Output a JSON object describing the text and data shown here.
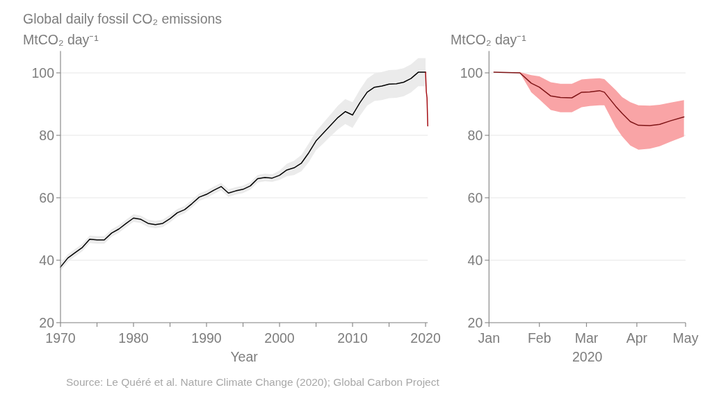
{
  "chart_data": [
    {
      "type": "line",
      "title": "Global daily fossil CO₂ emissions",
      "ylabel": "MtCO₂ day⁻¹",
      "xlabel": "Year",
      "annotations": [
        "Source: Le Quéré et al. Nature Climate Change (2020); Global Carbon Project"
      ],
      "xlim": [
        1970,
        2020.3
      ],
      "ylim": [
        20,
        107
      ],
      "xticks": [
        1970,
        {
          "value": 1975,
          "label": null
        },
        1980,
        {
          "value": 1985,
          "label": null
        },
        1990,
        {
          "value": 1995,
          "label": null
        },
        2000,
        {
          "value": 2005,
          "label": null
        },
        2010,
        {
          "value": 2015,
          "label": null
        },
        2020
      ],
      "yticks": [
        20,
        40,
        60,
        80,
        100
      ],
      "grid": "y",
      "series": [
        {
          "color": "#000000",
          "x": [
            1970,
            1971,
            1972,
            1973,
            1974,
            1975,
            1976,
            1977,
            1978,
            1979,
            1980,
            1981,
            1982,
            1983,
            1984,
            1985,
            1986,
            1987,
            1988,
            1989,
            1990,
            1991,
            1992,
            1993,
            1994,
            1995,
            1996,
            1997,
            1998,
            1999,
            2000,
            2001,
            2002,
            2003,
            2004,
            2005,
            2006,
            2007,
            2008,
            2009,
            2010,
            2011,
            2012,
            2013,
            2014,
            2015,
            2016,
            2017,
            2018,
            2019,
            2020
          ],
          "values": [
            37.8,
            40.7,
            42.4,
            44.1,
            46.7,
            46.5,
            46.5,
            48.7,
            50.0,
            51.8,
            53.5,
            53.1,
            51.8,
            51.4,
            51.8,
            53.3,
            55.2,
            56.2,
            58.1,
            60.2,
            61.1,
            62.4,
            63.6,
            61.5,
            62.2,
            62.7,
            63.8,
            66.1,
            66.5,
            66.3,
            67.2,
            68.9,
            69.6,
            71.1,
            74.4,
            78.2,
            80.7,
            83.2,
            85.7,
            87.6,
            86.5,
            90.4,
            93.8,
            95.4,
            95.8,
            96.4,
            96.5,
            97.0,
            98.2,
            100.2,
            100.2
          ],
          "lower": [
            36.6,
            39.5,
            41.2,
            42.9,
            45.5,
            45.3,
            45.3,
            47.5,
            48.8,
            50.6,
            52.3,
            51.9,
            50.6,
            50.2,
            50.6,
            52.1,
            54.0,
            55.0,
            56.9,
            59.0,
            59.9,
            61.2,
            62.4,
            60.3,
            61.0,
            61.5,
            62.6,
            64.9,
            65.3,
            65.1,
            65.7,
            66.9,
            67.3,
            68.5,
            71.4,
            75.2,
            77.4,
            79.7,
            81.9,
            83.6,
            82.4,
            86.2,
            89.5,
            91.0,
            91.3,
            91.9,
            92.0,
            92.5,
            93.7,
            95.7,
            95.7
          ],
          "upper": [
            39.0,
            41.9,
            43.6,
            45.3,
            47.9,
            47.7,
            47.7,
            49.9,
            51.2,
            53.0,
            54.7,
            54.3,
            53.0,
            52.6,
            53.0,
            54.5,
            56.4,
            57.4,
            59.3,
            61.4,
            62.3,
            63.6,
            64.8,
            62.7,
            63.4,
            63.9,
            65.0,
            67.3,
            67.7,
            67.5,
            68.7,
            70.9,
            71.9,
            73.7,
            77.4,
            81.2,
            84.0,
            86.7,
            89.5,
            91.6,
            90.6,
            94.6,
            98.1,
            99.8,
            100.3,
            100.9,
            101.0,
            101.5,
            102.7,
            104.7,
            104.7
          ]
        },
        {
          "color": "#a50f15",
          "x": [
            2020,
            2020.1,
            2020.2,
            2020.3
          ],
          "values": [
            100.2,
            94,
            92,
            83
          ]
        }
      ]
    },
    {
      "type": "line",
      "ylabel": "MtCO₂ day⁻¹",
      "xlabel": "2020",
      "xlim": [
        "2020-01-01",
        "2020-05-01"
      ],
      "ylim": [
        20,
        107
      ],
      "xticks": [
        {
          "value": "2020-01-01",
          "label": "Jan"
        },
        {
          "value": "2020-02-01",
          "label": "Feb"
        },
        {
          "value": "2020-03-01",
          "label": "Mar"
        },
        {
          "value": "2020-04-01",
          "label": "Apr"
        },
        {
          "value": "2020-05-01",
          "label": "May"
        }
      ],
      "yticks": [
        20,
        40,
        60,
        80,
        100
      ],
      "grid": "y",
      "series": [
        {
          "color": "#7f1416",
          "x": [
            "2020-01-04",
            "2020-01-20",
            "2020-01-27",
            "2020-02-01",
            "2020-02-08",
            "2020-02-14",
            "2020-02-21",
            "2020-02-27",
            "2020-03-03",
            "2020-03-09",
            "2020-03-12",
            "2020-03-19",
            "2020-03-23",
            "2020-03-28",
            "2020-04-02",
            "2020-04-09",
            "2020-04-15",
            "2020-04-22",
            "2020-04-30"
          ],
          "values": [
            100.2,
            100,
            96.7,
            95.4,
            92.6,
            92.1,
            92.0,
            93.8,
            93.9,
            94.3,
            93.8,
            89.3,
            87.0,
            84.4,
            83.2,
            83.1,
            83.5,
            84.7,
            85.9
          ],
          "lower": [
            100.2,
            100,
            93.8,
            91.5,
            88.1,
            87.4,
            87.4,
            89.0,
            89.4,
            89.6,
            89.6,
            82.6,
            79.6,
            76.7,
            75.4,
            75.7,
            76.5,
            78.0,
            79.6
          ],
          "upper": [
            100.2,
            100.2,
            99.3,
            98.9,
            97.0,
            96.5,
            96.5,
            97.9,
            98.1,
            98.3,
            98.0,
            94.5,
            92.2,
            90.6,
            89.6,
            89.5,
            89.8,
            90.5,
            91.3
          ]
        }
      ]
    }
  ]
}
